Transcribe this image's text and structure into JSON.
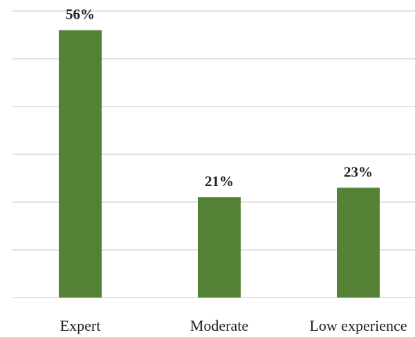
{
  "chart_data": {
    "type": "bar",
    "title": "",
    "xlabel": "",
    "ylabel": "",
    "categories": [
      "Expert",
      "Moderate",
      "Low experience"
    ],
    "values": [
      56,
      21,
      23
    ],
    "value_labels": [
      "56%",
      "21%",
      "23%"
    ],
    "ylim": [
      0,
      60
    ],
    "grid": true,
    "gridline_step": 10,
    "bar_color": "#548235",
    "gridline_color": "#d9d9d9"
  }
}
